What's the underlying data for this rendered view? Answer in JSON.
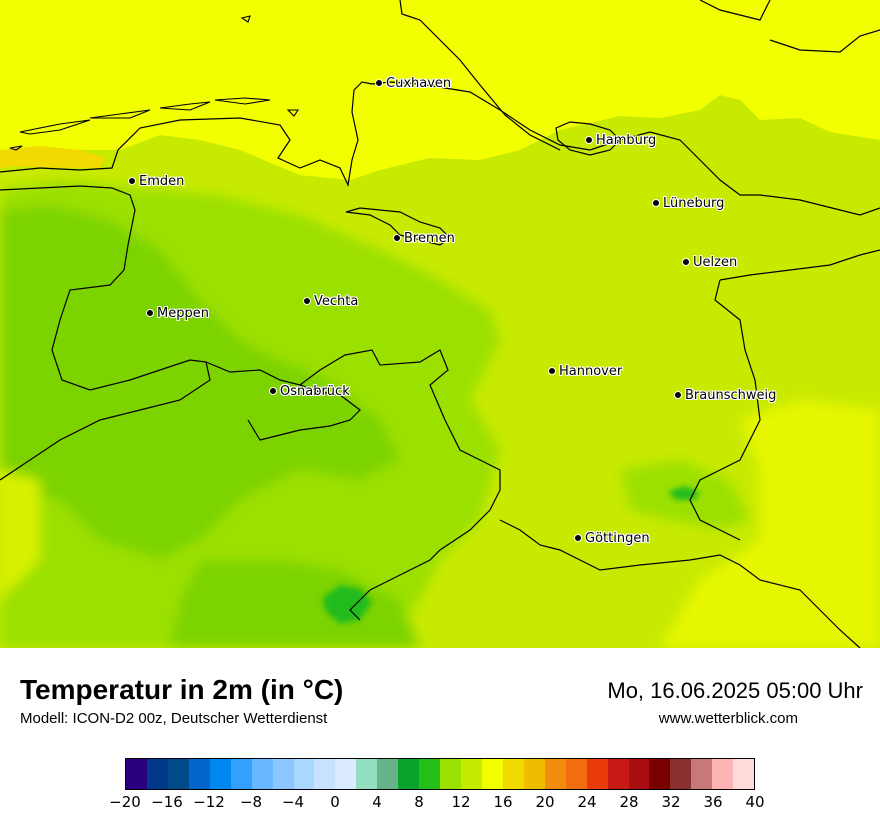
{
  "map": {
    "cities": [
      {
        "name": "Cuxhaven"
      },
      {
        "name": "Hamburg"
      },
      {
        "name": "Emden"
      },
      {
        "name": "Lüneburg"
      },
      {
        "name": "Bremen"
      },
      {
        "name": "Uelzen"
      },
      {
        "name": "Vechta"
      },
      {
        "name": "Meppen"
      },
      {
        "name": "Hannover"
      },
      {
        "name": "Osnabrück"
      },
      {
        "name": "Braunschweig"
      },
      {
        "name": "Göttingen"
      }
    ],
    "colors": {
      "sea": "#f2ff00",
      "land_main": "#c8ea00",
      "land_cool": "#9ce000",
      "land_cooler": "#7dd300",
      "cold_patch": "#22bb1a",
      "warm_coast": "#f2d900",
      "border": "#000000"
    }
  },
  "footer": {
    "title": "Temperatur in 2m (in °C)",
    "model": "Modell: ICON-D2 00z, Deutscher Wetterdienst",
    "datetime": "Mo, 16.06.2025 05:00 Uhr",
    "site": "www.wetterblick.com"
  },
  "legend": {
    "colors": [
      "#2b0080",
      "#00388c",
      "#004a8c",
      "#0066cc",
      "#0088f0",
      "#33a0ff",
      "#6ab8ff",
      "#8cc8ff",
      "#a9d8ff",
      "#c6e2ff",
      "#daeaff",
      "#93dfc2",
      "#66b38a",
      "#07a32a",
      "#23be16",
      "#9ae000",
      "#c6eb00",
      "#f2ff00",
      "#f0da00",
      "#f0bc00",
      "#f28c0e",
      "#f06e0e",
      "#e83a0a",
      "#c81a14",
      "#a80e12",
      "#7a0000",
      "#8b3030",
      "#c87878",
      "#ffb4b4",
      "#ffdcdc"
    ],
    "ticks": [
      "−20",
      "−16",
      "−12",
      "−8",
      "−4",
      "0",
      "4",
      "8",
      "12",
      "16",
      "20",
      "24",
      "28",
      "32",
      "36",
      "40"
    ]
  }
}
